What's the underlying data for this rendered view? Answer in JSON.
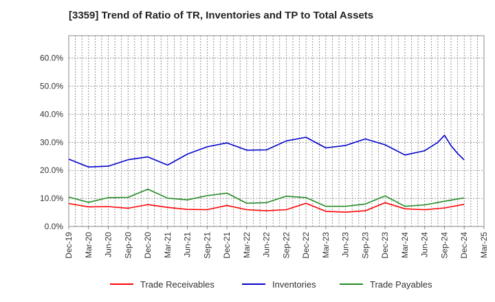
{
  "chart_data": {
    "type": "line",
    "title": "[3359]  Trend of Ratio of TR, Inventories and TP to Total Assets",
    "y_ticks": [
      "0.0%",
      "10.0%",
      "20.0%",
      "30.0%",
      "40.0%",
      "50.0%",
      "60.0%"
    ],
    "x_ticks": [
      "Dec-19",
      "Mar-20",
      "Jun-20",
      "Sep-20",
      "Dec-20",
      "Mar-21",
      "Jun-21",
      "Sep-21",
      "Dec-21",
      "Mar-22",
      "Jun-22",
      "Sep-22",
      "Dec-22",
      "Mar-23",
      "Jun-23",
      "Sep-23",
      "Dec-23",
      "Mar-24",
      "Jun-24",
      "Sep-24",
      "Dec-24",
      "Mar-25"
    ],
    "ylim": [
      0,
      68
    ],
    "grid": true,
    "legend_placement": "bottom",
    "series": [
      {
        "name": "Trade Receivables",
        "color": "#ff0000",
        "points": [
          [
            "Dec-19",
            8.2
          ],
          [
            "Mar-20",
            7.0
          ],
          [
            "Jun-20",
            7.1
          ],
          [
            "Sep-20",
            6.5
          ],
          [
            "Dec-20",
            7.8
          ],
          [
            "Mar-21",
            6.8
          ],
          [
            "Jun-21",
            6.1
          ],
          [
            "Sep-21",
            6.0
          ],
          [
            "Dec-21",
            7.5
          ],
          [
            "Mar-22",
            6.0
          ],
          [
            "Jun-22",
            5.6
          ],
          [
            "Sep-22",
            6.0
          ],
          [
            "Dec-22",
            8.3
          ],
          [
            "Mar-23",
            5.4
          ],
          [
            "Jun-23",
            5.1
          ],
          [
            "Sep-23",
            5.6
          ],
          [
            "Dec-23",
            8.5
          ],
          [
            "Mar-24",
            6.3
          ],
          [
            "Jun-24",
            6.0
          ],
          [
            "Sep-24",
            6.6
          ],
          [
            "Dec-24",
            7.9
          ]
        ]
      },
      {
        "name": "Inventories",
        "color": "#0000cc",
        "points": [
          [
            "Dec-19",
            24.0
          ],
          [
            "Mar-20",
            21.2
          ],
          [
            "Jun-20",
            21.5
          ],
          [
            "Sep-20",
            23.8
          ],
          [
            "Dec-20",
            24.8
          ],
          [
            "Mar-21",
            21.9
          ],
          [
            "Jun-21",
            25.8
          ],
          [
            "Sep-21",
            28.4
          ],
          [
            "Dec-21",
            29.8
          ],
          [
            "Mar-22",
            27.2
          ],
          [
            "Jun-22",
            27.3
          ],
          [
            "Sep-22",
            30.5
          ],
          [
            "Dec-22",
            31.8
          ],
          [
            "Mar-23",
            28.0
          ],
          [
            "Jun-23",
            28.9
          ],
          [
            "Sep-23",
            31.2
          ],
          [
            "Dec-23",
            29.1
          ],
          [
            "Mar-24",
            25.5
          ],
          [
            "Jun-24",
            27.0
          ],
          [
            "Aug-24",
            30.0
          ],
          [
            "Sep-24",
            32.5
          ],
          [
            "Oct-24",
            28.8
          ],
          [
            "Nov-24",
            26.0
          ],
          [
            "Dec-24",
            23.7
          ]
        ]
      },
      {
        "name": "Trade Payables",
        "color": "#228b22",
        "points": [
          [
            "Dec-19",
            10.5
          ],
          [
            "Mar-20",
            8.6
          ],
          [
            "Jun-20",
            10.3
          ],
          [
            "Sep-20",
            10.4
          ],
          [
            "Dec-20",
            13.3
          ],
          [
            "Mar-21",
            10.1
          ],
          [
            "Jun-21",
            9.5
          ],
          [
            "Sep-21",
            11.0
          ],
          [
            "Dec-21",
            11.9
          ],
          [
            "Mar-22",
            8.3
          ],
          [
            "Jun-22",
            8.5
          ],
          [
            "Sep-22",
            10.8
          ],
          [
            "Dec-22",
            10.3
          ],
          [
            "Mar-23",
            7.2
          ],
          [
            "Jun-23",
            7.2
          ],
          [
            "Sep-23",
            8.0
          ],
          [
            "Dec-23",
            10.9
          ],
          [
            "Mar-24",
            7.2
          ],
          [
            "Jun-24",
            7.7
          ],
          [
            "Sep-24",
            9.0
          ],
          [
            "Dec-24",
            10.2
          ]
        ]
      }
    ]
  }
}
